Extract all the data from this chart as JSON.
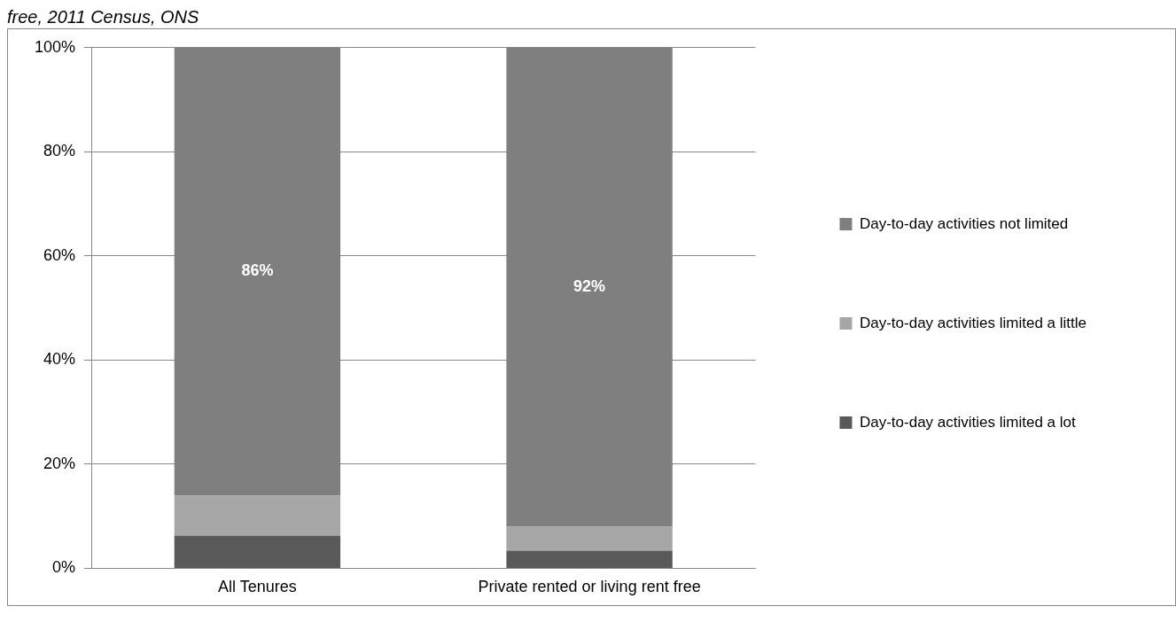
{
  "chart_data": {
    "type": "bar",
    "title": "free, 2011 Census, ONS",
    "categories": [
      "All Tenures",
      "Private rented or living rent free"
    ],
    "stacked": true,
    "series": [
      {
        "name": "Day-to-day activities limited a lot",
        "color": "#595959",
        "values": [
          6.3,
          3.4
        ]
      },
      {
        "name": "Day-to-day activities limited a little",
        "color": "#a6a6a6",
        "values": [
          7.7,
          4.6
        ]
      },
      {
        "name": "Day-to-day activities not limited",
        "color": "#7f7f7f",
        "values": [
          86,
          92
        ],
        "value_labels": [
          "86%",
          "92%"
        ]
      }
    ],
    "ylim": [
      0,
      100
    ],
    "yticks": [
      {
        "value": 0,
        "label": "0%"
      },
      {
        "value": 20,
        "label": "20%"
      },
      {
        "value": 40,
        "label": "40%"
      },
      {
        "value": 60,
        "label": "60%"
      },
      {
        "value": 80,
        "label": "80%"
      },
      {
        "value": 100,
        "label": "100%"
      }
    ],
    "grid": "y",
    "legend": "right"
  }
}
